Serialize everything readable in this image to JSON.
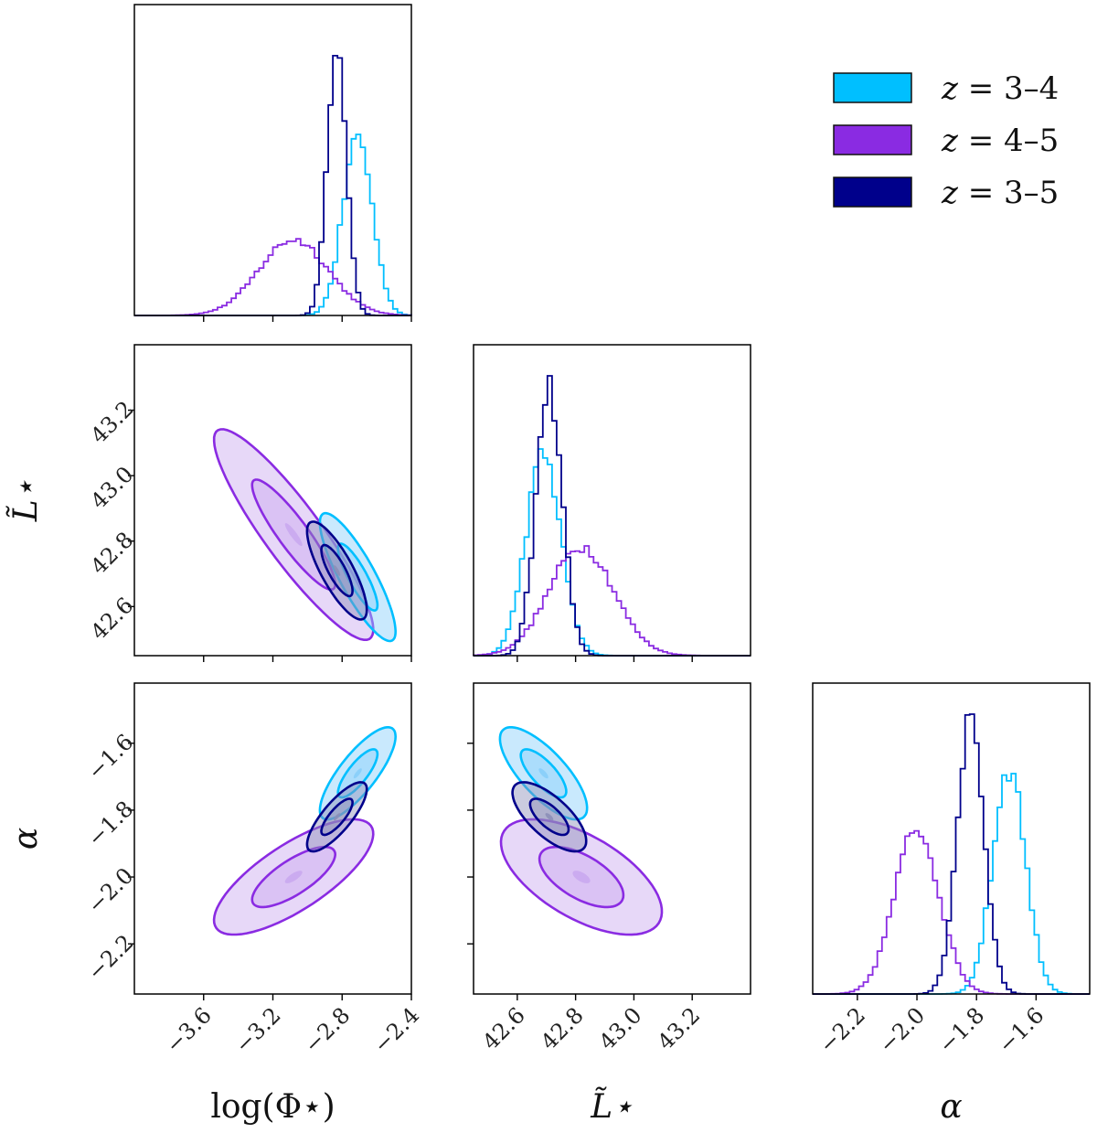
{
  "chart_data": {
    "type": "corner",
    "parameters": [
      {
        "key": "logphi",
        "label": "log(Φ⋆)",
        "range": [
          -4.0,
          -2.4
        ],
        "ticks": [
          -3.6,
          -3.2,
          -2.8,
          -2.4
        ],
        "tick_labels": [
          "−3.6",
          "−3.2",
          "−2.8",
          "−2.4"
        ]
      },
      {
        "key": "lstar",
        "label": "L̃⋆",
        "range": [
          42.45,
          43.4
        ],
        "ticks": [
          42.6,
          42.8,
          43.0,
          43.2
        ],
        "tick_labels": [
          "42.6",
          "42.8",
          "43.0",
          "43.2"
        ]
      },
      {
        "key": "alpha",
        "label": "α",
        "range": [
          -2.35,
          -1.42
        ],
        "ticks": [
          -2.2,
          -2.0,
          -1.8,
          -1.6
        ],
        "tick_labels": [
          "−2.2",
          "−2.0",
          "−1.8",
          "−1.6"
        ]
      }
    ],
    "legend": {
      "position": "top-right",
      "entries": [
        {
          "label_left": "z",
          "label_right": "= 3–4",
          "color": "#00bfff"
        },
        {
          "label_left": "z",
          "label_right": "= 4–5",
          "color": "#8a2be2"
        },
        {
          "label_left": "z",
          "label_right": "= 3–5",
          "color": "#00008b"
        }
      ]
    },
    "series": [
      {
        "name": "z = 3–4",
        "color": "#00bfff",
        "fill": "#87cefa",
        "marginals": {
          "logphi": {
            "mean": -2.71,
            "sd": 0.085
          },
          "lstar": {
            "mean": 42.69,
            "sd": 0.06
          },
          "alpha": {
            "mean": -1.69,
            "sd": 0.055
          }
        },
        "pairs": {
          "lstar_logphi": {
            "rho": -0.85,
            "sx": 0.095,
            "sy": 0.085
          },
          "alpha_logphi": {
            "rho": 0.8,
            "sx": 0.095,
            "sy": 0.06
          },
          "alpha_lstar": {
            "rho": -0.75,
            "sx": 0.065,
            "sy": 0.06
          }
        }
      },
      {
        "name": "z = 4–5",
        "color": "#8a2be2",
        "fill": "#c9a8f0",
        "marginals": {
          "logphi": {
            "mean": -3.08,
            "sd": 0.2
          },
          "lstar": {
            "mean": 42.82,
            "sd": 0.11
          },
          "alpha": {
            "mean": -2.0,
            "sd": 0.075
          }
        },
        "pairs": {
          "lstar_logphi": {
            "rho": -0.9,
            "sx": 0.2,
            "sy": 0.14
          },
          "alpha_logphi": {
            "rho": 0.75,
            "sx": 0.2,
            "sy": 0.075
          },
          "alpha_lstar": {
            "rho": -0.6,
            "sx": 0.12,
            "sy": 0.075
          }
        }
      },
      {
        "name": "z = 3–5",
        "color": "#00008b",
        "fill": "#8c8fb8",
        "marginals": {
          "logphi": {
            "mean": -2.83,
            "sd": 0.055
          },
          "lstar": {
            "mean": 42.71,
            "sd": 0.045
          },
          "alpha": {
            "mean": -1.82,
            "sd": 0.045
          }
        },
        "pairs": {
          "lstar_logphi": {
            "rho": -0.8,
            "sx": 0.075,
            "sy": 0.065
          },
          "alpha_logphi": {
            "rho": 0.8,
            "sx": 0.075,
            "sy": 0.045
          },
          "alpha_lstar": {
            "rho": -0.7,
            "sx": 0.055,
            "sy": 0.045
          }
        }
      }
    ]
  }
}
